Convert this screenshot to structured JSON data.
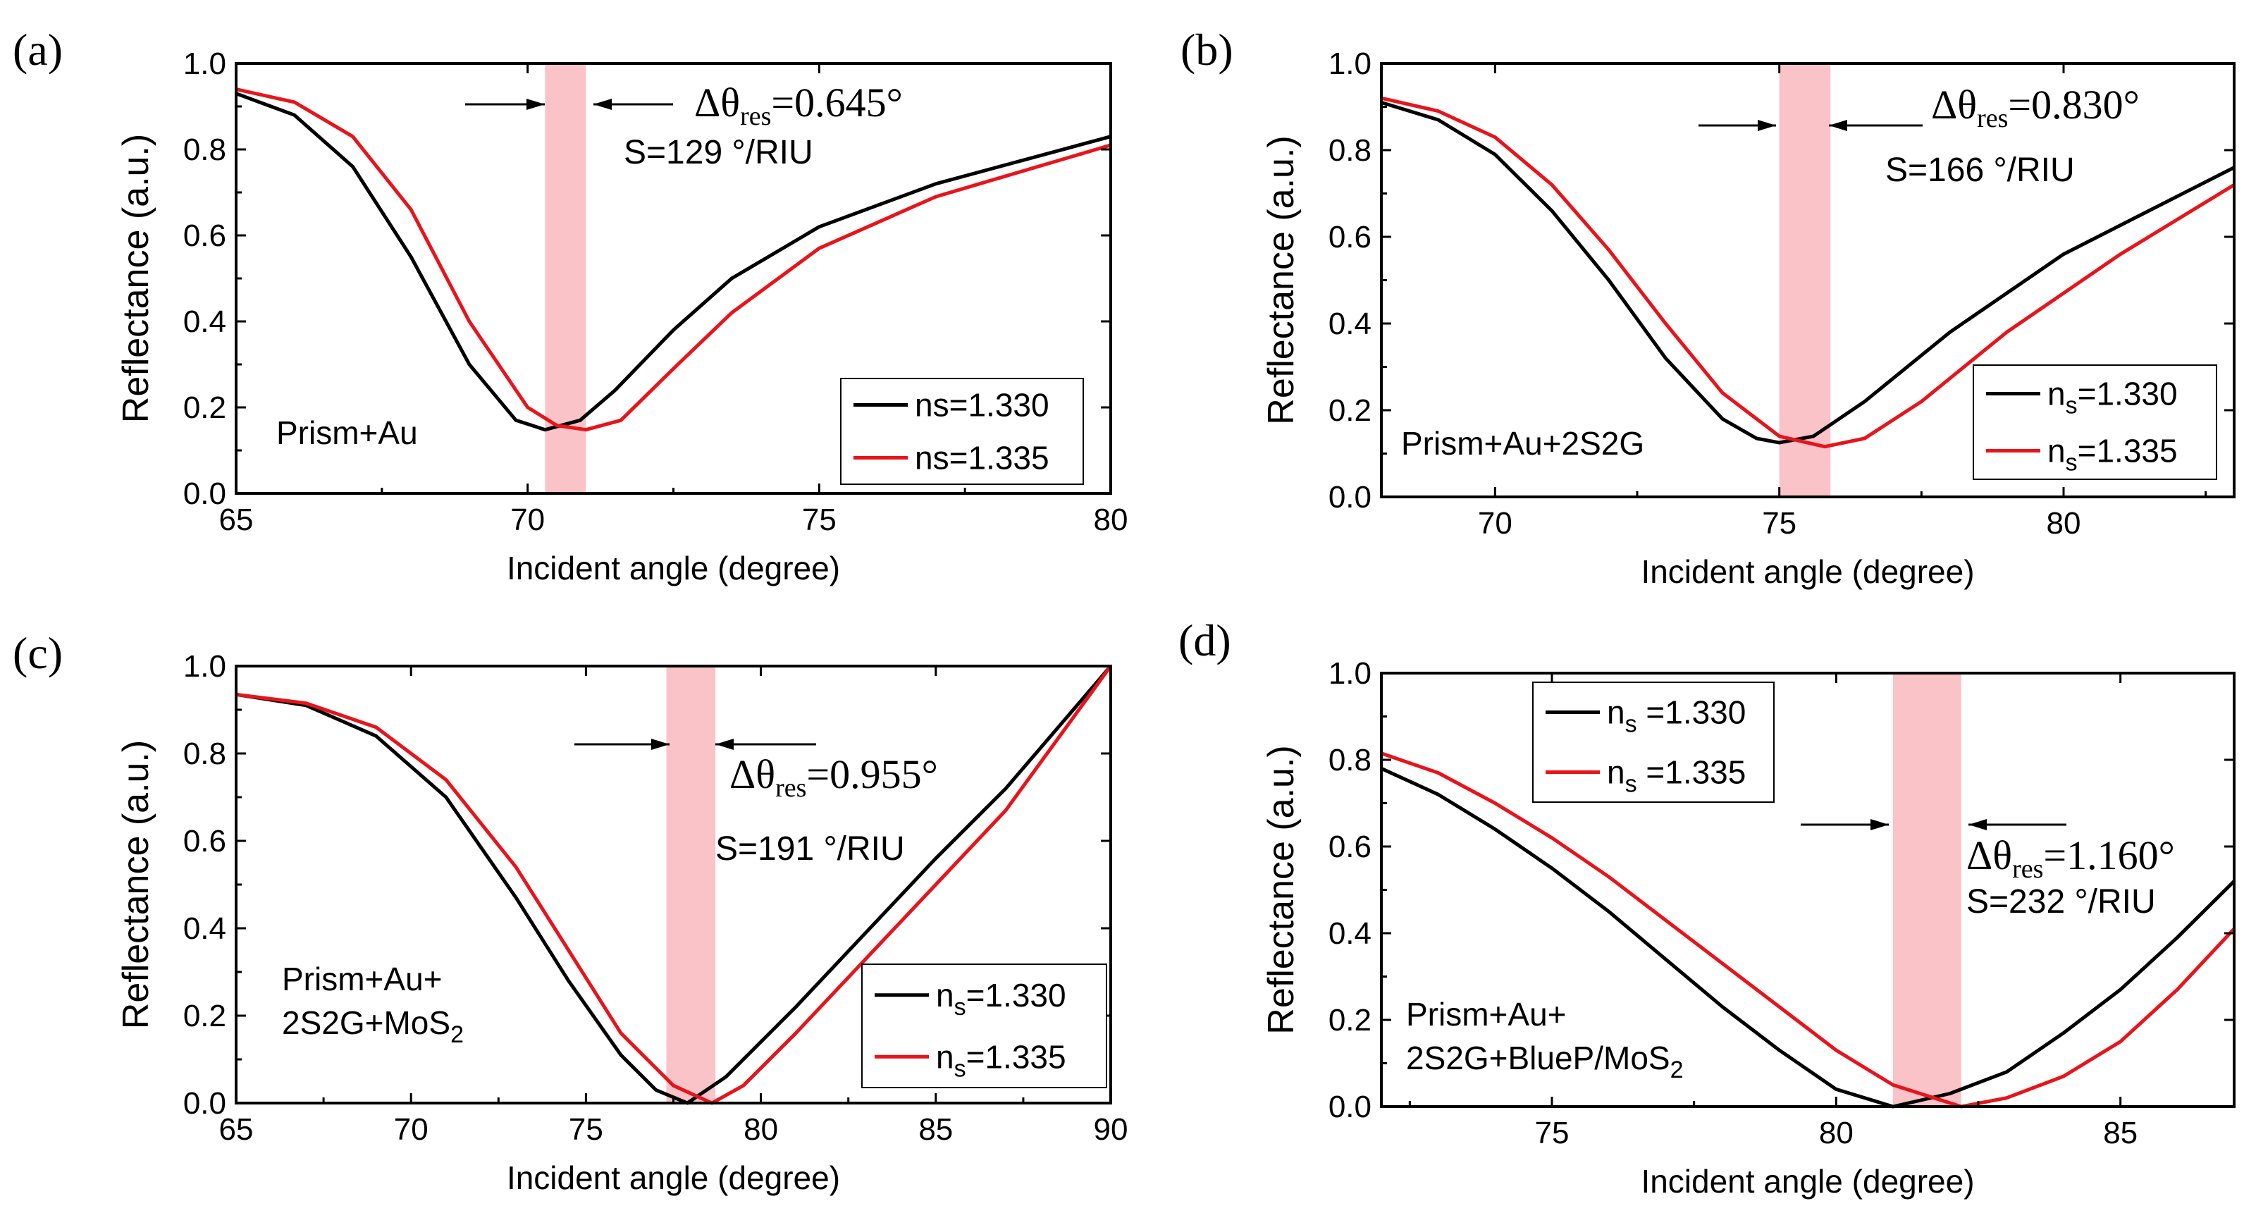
{
  "chart_data": [
    {
      "panel": "(a)",
      "type": "line",
      "xlabel": "Incident angle (degree)",
      "ylabel": "Reflectance (a.u.)",
      "xlim": [
        65,
        80
      ],
      "ylim": [
        0.0,
        1.0
      ],
      "xticks": [
        "65",
        "70",
        "75",
        "80"
      ],
      "yticks": [
        "0.0",
        "0.2",
        "0.4",
        "0.6",
        "0.8",
        "1.0"
      ],
      "structure": [
        "Prism+Au"
      ],
      "delta": {
        "symbol": "Δθ",
        "sub": "res",
        "value": "=0.645°"
      },
      "sensitivity": "S=129 °/RIU",
      "band": [
        70.3,
        71.0
      ],
      "series": [
        {
          "name": "ns=1.330",
          "sym": "ns",
          "sub": "",
          "val": "=1.330",
          "color": "#000000",
          "x": [
            65,
            66,
            67,
            68,
            69,
            69.8,
            70.3,
            70.9,
            71.5,
            72.5,
            73.5,
            75,
            77,
            80
          ],
          "y": [
            0.93,
            0.88,
            0.76,
            0.55,
            0.3,
            0.17,
            0.148,
            0.17,
            0.24,
            0.38,
            0.5,
            0.62,
            0.72,
            0.83
          ]
        },
        {
          "name": "ns=1.335",
          "sym": "ns",
          "sub": "",
          "val": "=1.335",
          "color": "#e8141b",
          "x": [
            65,
            66,
            67,
            68,
            69,
            70,
            70.5,
            71.0,
            71.6,
            72.5,
            73.5,
            75,
            77,
            80
          ],
          "y": [
            0.94,
            0.91,
            0.83,
            0.66,
            0.4,
            0.2,
            0.158,
            0.148,
            0.17,
            0.29,
            0.42,
            0.57,
            0.69,
            0.81
          ]
        }
      ],
      "legend": "bottom-right"
    },
    {
      "panel": "(b)",
      "type": "line",
      "xlabel": "Incident angle (degree)",
      "ylabel": "Reflectance (a.u.)",
      "xlim": [
        68,
        83
      ],
      "ylim": [
        0.0,
        1.0
      ],
      "xticks": [
        "70",
        "75",
        "80"
      ],
      "yticks": [
        "0.0",
        "0.2",
        "0.4",
        "0.6",
        "0.8",
        "1.0"
      ],
      "structure": [
        "Prism+Au+2S2G"
      ],
      "delta": {
        "symbol": "Δθ",
        "sub": "res",
        "value": "=0.830°"
      },
      "sensitivity": "S=166 °/RIU",
      "band": [
        75.0,
        75.9
      ],
      "series": [
        {
          "name": "ns=1.330",
          "sym": "n",
          "sub": "s",
          "val": "=1.330",
          "color": "#000000",
          "x": [
            68,
            69,
            70,
            71,
            72,
            73,
            74,
            74.6,
            75.0,
            75.6,
            76.5,
            78,
            80,
            83
          ],
          "y": [
            0.91,
            0.87,
            0.79,
            0.66,
            0.5,
            0.32,
            0.18,
            0.135,
            0.125,
            0.14,
            0.22,
            0.38,
            0.56,
            0.76
          ]
        },
        {
          "name": "ns=1.335",
          "sym": "n",
          "sub": "s",
          "val": "=1.335",
          "color": "#e8141b",
          "x": [
            68,
            69,
            70,
            71,
            72,
            73,
            74,
            75,
            75.8,
            76.5,
            77.5,
            79,
            81,
            83
          ],
          "y": [
            0.92,
            0.89,
            0.83,
            0.72,
            0.57,
            0.4,
            0.24,
            0.14,
            0.116,
            0.135,
            0.22,
            0.38,
            0.56,
            0.72
          ]
        }
      ],
      "legend": "bottom-right"
    },
    {
      "panel": "(c)",
      "type": "line",
      "xlabel": "Incident angle (degree)",
      "ylabel": "Reflectance (a.u.)",
      "xlim": [
        65,
        90
      ],
      "ylim": [
        0.0,
        1.0
      ],
      "xticks": [
        "65",
        "70",
        "75",
        "80",
        "85",
        "90"
      ],
      "yticks": [
        "0.0",
        "0.2",
        "0.4",
        "0.6",
        "0.8",
        "1.0"
      ],
      "structure": [
        "Prism+Au+",
        "2S2G+MoS"
      ],
      "structure_sub": "2",
      "delta": {
        "symbol": "Δθ",
        "sub": "res",
        "value": "=0.955°"
      },
      "sensitivity": "S=191 °/RIU",
      "band": [
        77.3,
        78.7
      ],
      "series": [
        {
          "name": "ns=1.330",
          "sym": "n",
          "sub": "s",
          "val": "=1.330",
          "color": "#000000",
          "x": [
            65,
            67,
            69,
            71,
            73,
            74.5,
            76,
            77,
            77.9,
            79,
            81,
            83,
            85,
            87,
            90
          ],
          "y": [
            0.935,
            0.91,
            0.84,
            0.7,
            0.47,
            0.28,
            0.11,
            0.03,
            0.0,
            0.06,
            0.22,
            0.39,
            0.56,
            0.72,
            1.0
          ]
        },
        {
          "name": "ns=1.335",
          "sym": "n",
          "sub": "s",
          "val": "=1.335",
          "color": "#e8141b",
          "x": [
            65,
            67,
            69,
            71,
            73,
            74.5,
            76,
            77.5,
            78.6,
            79.5,
            81,
            83,
            85,
            87,
            90
          ],
          "y": [
            0.935,
            0.915,
            0.86,
            0.74,
            0.54,
            0.35,
            0.16,
            0.04,
            0.0,
            0.04,
            0.16,
            0.33,
            0.5,
            0.67,
            1.0
          ]
        }
      ],
      "legend": "bottom-right"
    },
    {
      "panel": "(d)",
      "type": "line",
      "xlabel": "Incident angle (degree)",
      "ylabel": "Reflectance (a.u.)",
      "xlim": [
        72,
        87
      ],
      "ylim": [
        0.0,
        1.0
      ],
      "xticks": [
        "75",
        "80",
        "85"
      ],
      "yticks": [
        "0.0",
        "0.2",
        "0.4",
        "0.6",
        "0.8",
        "1.0"
      ],
      "structure": [
        "Prism+Au+",
        "2S2G+BlueP/MoS"
      ],
      "structure_sub": "2",
      "delta": {
        "symbol": "Δθ",
        "sub": "res",
        "value": "=1.160°"
      },
      "sensitivity": "S=232 °/RIU",
      "band": [
        81.0,
        82.2
      ],
      "series": [
        {
          "name": "ns =1.330",
          "sym": "n",
          "sub": "s",
          "val": " =1.330",
          "color": "#000000",
          "x": [
            72,
            73,
            74,
            75,
            76,
            77,
            78,
            79,
            80,
            81,
            82,
            83,
            84,
            85,
            86,
            87
          ],
          "y": [
            0.78,
            0.72,
            0.64,
            0.55,
            0.45,
            0.34,
            0.23,
            0.13,
            0.04,
            0.0,
            0.03,
            0.08,
            0.17,
            0.27,
            0.39,
            0.52
          ]
        },
        {
          "name": "ns =1.335",
          "sym": "n",
          "sub": "s",
          "val": " =1.335",
          "color": "#e8141b",
          "x": [
            72,
            73,
            74,
            75,
            76,
            77,
            78,
            79,
            80,
            81,
            82.2,
            83,
            84,
            85,
            86,
            87
          ],
          "y": [
            0.815,
            0.77,
            0.7,
            0.62,
            0.53,
            0.43,
            0.33,
            0.23,
            0.13,
            0.05,
            0.0,
            0.02,
            0.07,
            0.15,
            0.27,
            0.41
          ]
        }
      ],
      "legend": "top-left"
    }
  ]
}
